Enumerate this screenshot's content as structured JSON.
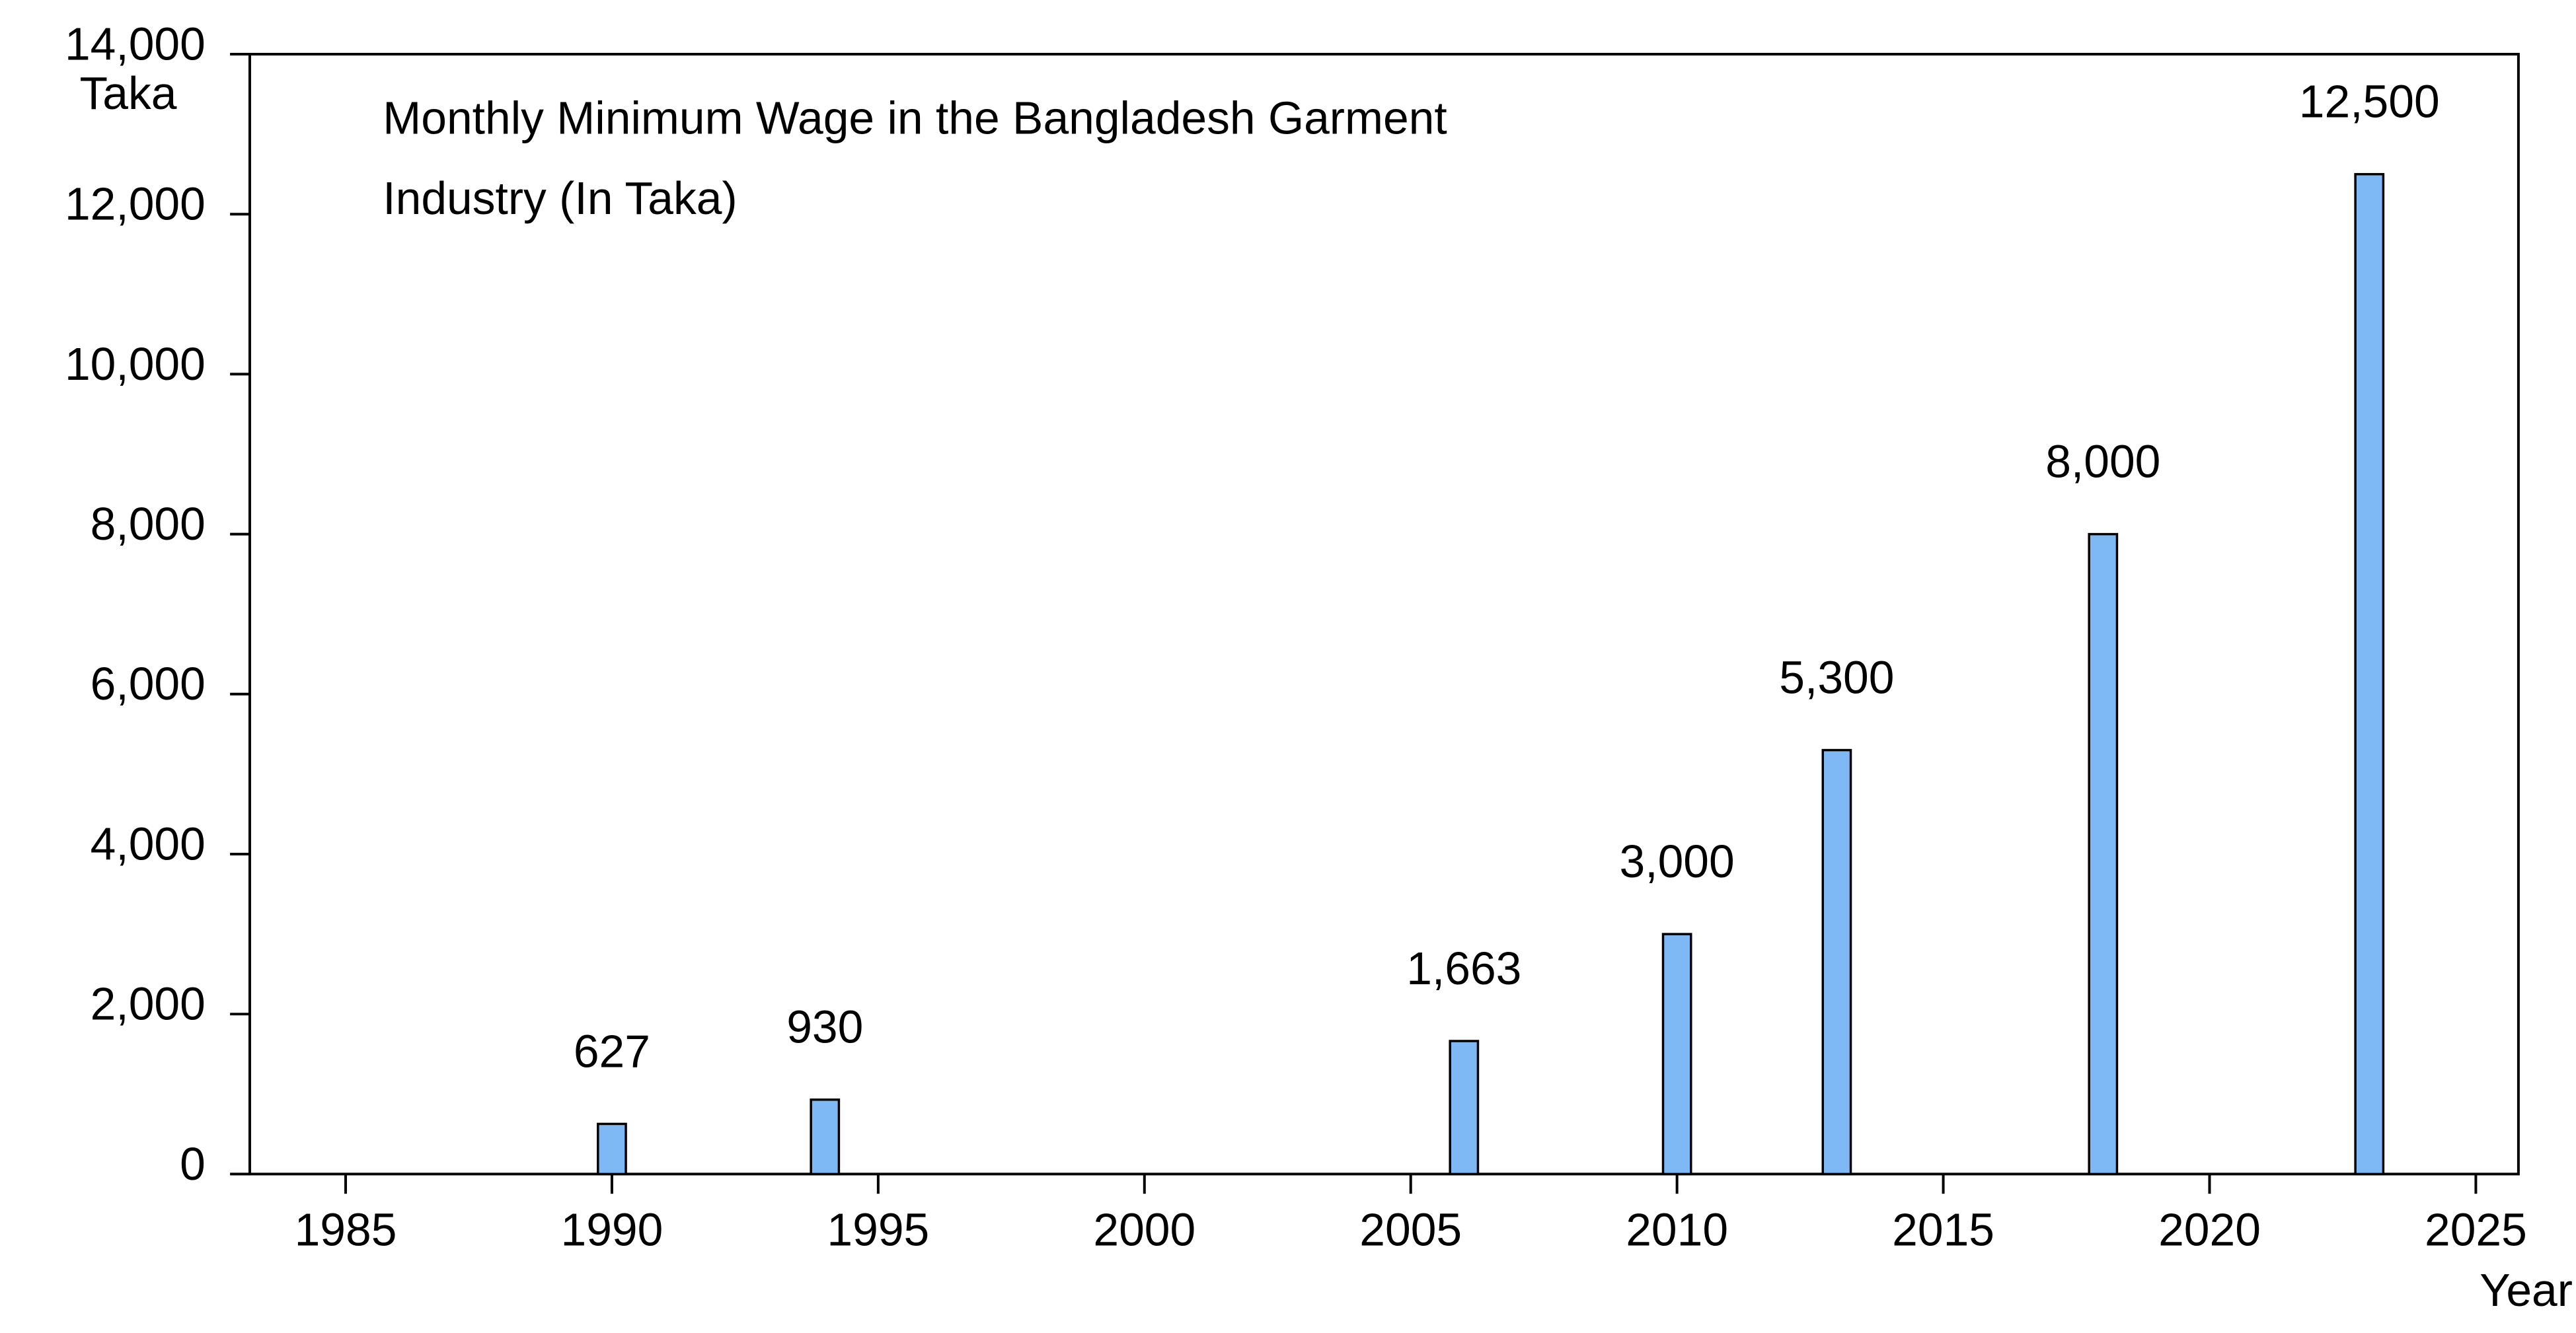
{
  "chart_data": {
    "type": "bar",
    "title": [
      "Monthly Minimum Wage in the Bangladesh Garment",
      "Industry (In Taka)"
    ],
    "y_label": "Taka",
    "x_label": "Year",
    "x": [
      1990,
      1994,
      2006,
      2010,
      2013,
      2018,
      2023
    ],
    "values": [
      627,
      930,
      1663,
      3000,
      5300,
      8000,
      12500
    ],
    "value_labels": [
      "627",
      "930",
      "1,663",
      "3,000",
      "5,300",
      "8,000",
      "12,500"
    ],
    "color": "#7fb9f5",
    "xlim": [
      1983.2,
      2025.8
    ],
    "xticks": [
      1985,
      1990,
      1995,
      2000,
      2005,
      2010,
      2015,
      2020,
      2025
    ],
    "ylim": [
      0,
      14000
    ],
    "yticks": [
      0,
      {
        "value": 2000,
        "label": "2,000"
      },
      {
        "value": 4000,
        "label": "4,000"
      },
      {
        "value": 6000,
        "label": "6,000"
      },
      {
        "value": 8000,
        "label": "8,000"
      },
      {
        "value": 10000,
        "label": "10,000"
      },
      {
        "value": 12000,
        "label": "12,000"
      },
      {
        "value": 14000,
        "label": "14,000"
      }
    ],
    "grid": false
  }
}
